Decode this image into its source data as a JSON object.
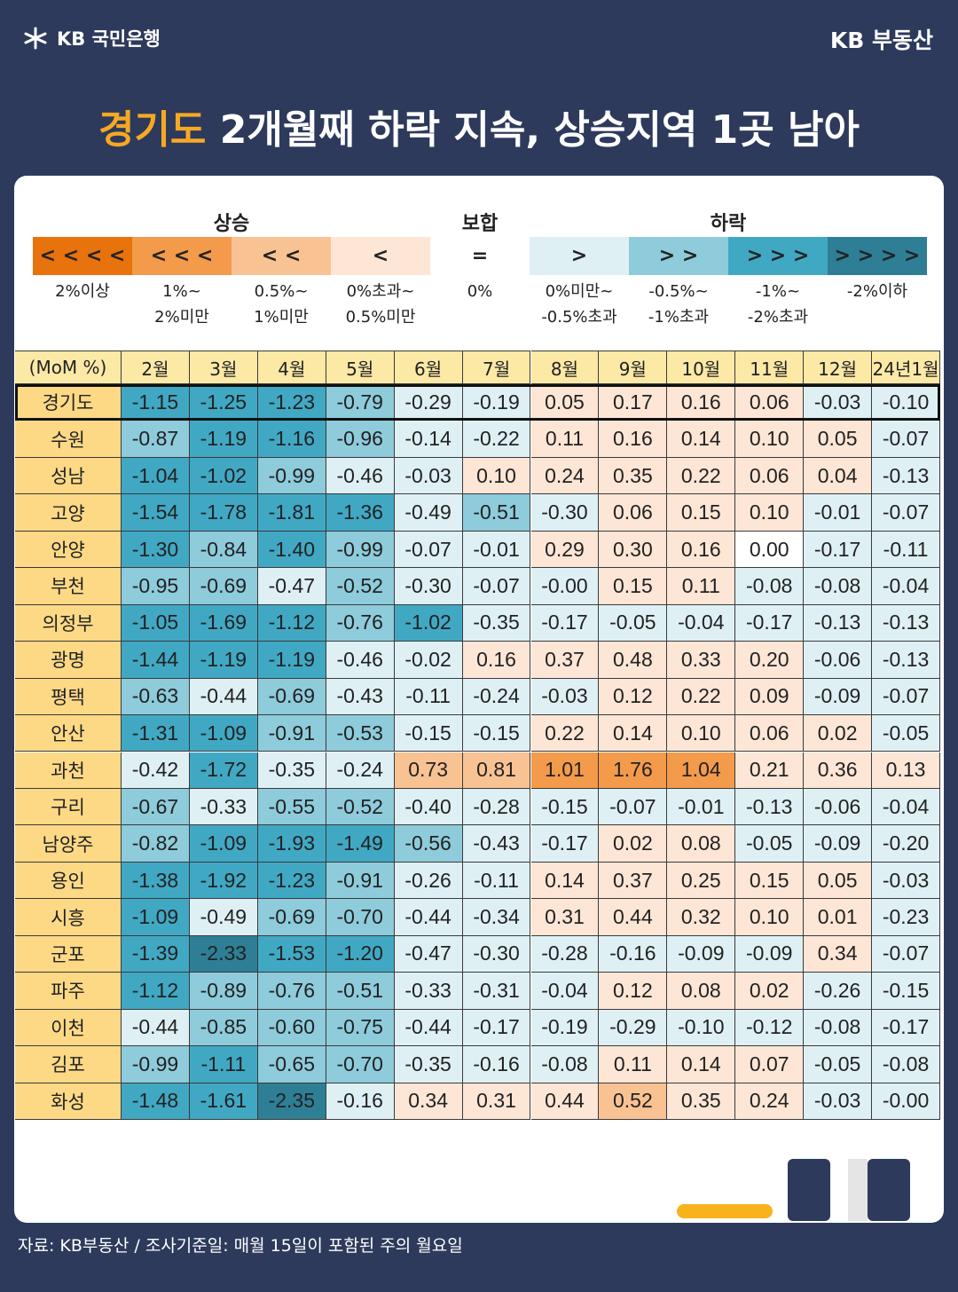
{
  "header": {
    "brand_left": "KB 국민은행",
    "brand_right": "KB 부동산"
  },
  "title": {
    "highlight": "경기도",
    "rest": "2개월째 하락 지속, 상승지역 1곳 남아"
  },
  "legend": {
    "groups": [
      "상승",
      "보합",
      "하락"
    ],
    "items": [
      {
        "symbol": "< < < <",
        "label": [
          "2%이상"
        ]
      },
      {
        "symbol": "< < <",
        "label": [
          "1%~",
          "2%미만"
        ]
      },
      {
        "symbol": "< <",
        "label": [
          "0.5%~",
          "1%미만"
        ]
      },
      {
        "symbol": "<",
        "label": [
          "0%초과~",
          "0.5%미만"
        ]
      },
      {
        "symbol": "=",
        "label": [
          "0%"
        ]
      },
      {
        "symbol": ">",
        "label": [
          "0%미만~",
          "-0.5%초과"
        ]
      },
      {
        "symbol": "> >",
        "label": [
          "-0.5%~",
          "-1%초과"
        ]
      },
      {
        "symbol": "> > >",
        "label": [
          "-1%~",
          "-2%초과"
        ]
      },
      {
        "symbol": "> > > >",
        "label": [
          "-2%이하"
        ]
      }
    ]
  },
  "table": {
    "columns": [
      "(MoM %)",
      "2월",
      "3월",
      "4월",
      "5월",
      "6월",
      "7월",
      "8월",
      "9월",
      "10월",
      "11월",
      "12월",
      "24년1월"
    ],
    "rows": [
      {
        "region": "경기도",
        "values": [
          "-1.15",
          "-1.25",
          "-1.23",
          "-0.79",
          "-0.29",
          "-0.19",
          "0.05",
          "0.17",
          "0.16",
          "0.06",
          "-0.03",
          "-0.10"
        ]
      },
      {
        "region": "수원",
        "values": [
          "-0.87",
          "-1.19",
          "-1.16",
          "-0.96",
          "-0.14",
          "-0.22",
          "0.11",
          "0.16",
          "0.14",
          "0.10",
          "0.05",
          "-0.07"
        ]
      },
      {
        "region": "성남",
        "values": [
          "-1.04",
          "-1.02",
          "-0.99",
          "-0.46",
          "-0.03",
          "0.10",
          "0.24",
          "0.35",
          "0.22",
          "0.06",
          "0.04",
          "-0.13"
        ]
      },
      {
        "region": "고양",
        "values": [
          "-1.54",
          "-1.78",
          "-1.81",
          "-1.36",
          "-0.49",
          "-0.51",
          "-0.30",
          "0.06",
          "0.15",
          "0.10",
          "-0.01",
          "-0.07"
        ]
      },
      {
        "region": "안양",
        "values": [
          "-1.30",
          "-0.84",
          "-1.40",
          "-0.99",
          "-0.07",
          "-0.01",
          "0.29",
          "0.30",
          "0.16",
          "0.00",
          "-0.17",
          "-0.11"
        ]
      },
      {
        "region": "부천",
        "values": [
          "-0.95",
          "-0.69",
          "-0.47",
          "-0.52",
          "-0.30",
          "-0.07",
          "-0.00",
          "0.15",
          "0.11",
          "-0.08",
          "-0.08",
          "-0.04"
        ]
      },
      {
        "region": "의정부",
        "values": [
          "-1.05",
          "-1.69",
          "-1.12",
          "-0.76",
          "-1.02",
          "-0.35",
          "-0.17",
          "-0.05",
          "-0.04",
          "-0.17",
          "-0.13",
          "-0.13"
        ]
      },
      {
        "region": "광명",
        "values": [
          "-1.44",
          "-1.19",
          "-1.19",
          "-0.46",
          "-0.02",
          "0.16",
          "0.37",
          "0.48",
          "0.33",
          "0.20",
          "-0.06",
          "-0.13"
        ]
      },
      {
        "region": "평택",
        "values": [
          "-0.63",
          "-0.44",
          "-0.69",
          "-0.43",
          "-0.11",
          "-0.24",
          "-0.03",
          "0.12",
          "0.22",
          "0.09",
          "-0.09",
          "-0.07"
        ]
      },
      {
        "region": "안산",
        "values": [
          "-1.31",
          "-1.09",
          "-0.91",
          "-0.53",
          "-0.15",
          "-0.15",
          "0.22",
          "0.14",
          "0.10",
          "0.06",
          "0.02",
          "-0.05"
        ]
      },
      {
        "region": "과천",
        "values": [
          "-0.42",
          "-1.72",
          "-0.35",
          "-0.24",
          "0.73",
          "0.81",
          "1.01",
          "1.76",
          "1.04",
          "0.21",
          "0.36",
          "0.13"
        ]
      },
      {
        "region": "구리",
        "values": [
          "-0.67",
          "-0.33",
          "-0.55",
          "-0.52",
          "-0.40",
          "-0.28",
          "-0.15",
          "-0.07",
          "-0.01",
          "-0.13",
          "-0.06",
          "-0.04"
        ]
      },
      {
        "region": "남양주",
        "values": [
          "-0.82",
          "-1.09",
          "-1.93",
          "-1.49",
          "-0.56",
          "-0.43",
          "-0.17",
          "0.02",
          "0.08",
          "-0.05",
          "-0.09",
          "-0.20"
        ]
      },
      {
        "region": "용인",
        "values": [
          "-1.38",
          "-1.92",
          "-1.23",
          "-0.91",
          "-0.26",
          "-0.11",
          "0.14",
          "0.37",
          "0.25",
          "0.15",
          "0.05",
          "-0.03"
        ]
      },
      {
        "region": "시흥",
        "values": [
          "-1.09",
          "-0.49",
          "-0.69",
          "-0.70",
          "-0.44",
          "-0.34",
          "0.31",
          "0.44",
          "0.32",
          "0.10",
          "0.01",
          "-0.23"
        ]
      },
      {
        "region": "군포",
        "values": [
          "-1.39",
          "-2.33",
          "-1.53",
          "-1.20",
          "-0.47",
          "-0.30",
          "-0.28",
          "-0.16",
          "-0.09",
          "-0.09",
          "0.34",
          "-0.07"
        ]
      },
      {
        "region": "파주",
        "values": [
          "-1.12",
          "-0.89",
          "-0.76",
          "-0.51",
          "-0.33",
          "-0.31",
          "-0.04",
          "0.12",
          "0.08",
          "0.02",
          "-0.26",
          "-0.15"
        ]
      },
      {
        "region": "이천",
        "values": [
          "-0.44",
          "-0.85",
          "-0.60",
          "-0.75",
          "-0.44",
          "-0.17",
          "-0.19",
          "-0.29",
          "-0.10",
          "-0.12",
          "-0.08",
          "-0.17"
        ]
      },
      {
        "region": "김포",
        "values": [
          "-0.99",
          "-1.11",
          "-0.65",
          "-0.70",
          "-0.35",
          "-0.16",
          "-0.08",
          "0.11",
          "0.14",
          "0.07",
          "-0.05",
          "-0.08"
        ]
      },
      {
        "region": "화성",
        "values": [
          "-1.48",
          "-1.61",
          "-2.35",
          "-0.16",
          "0.34",
          "0.31",
          "0.44",
          "0.52",
          "0.35",
          "0.24",
          "-0.03",
          "-0.00"
        ]
      }
    ]
  },
  "source": "자료: KB부동산 / 조사기준일: 매월 15일이 포함된 주의 월요일"
}
